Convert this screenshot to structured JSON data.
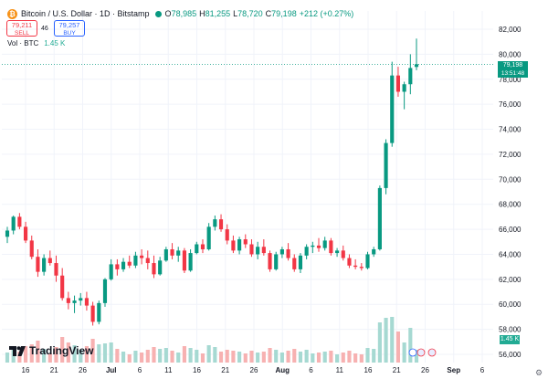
{
  "header": {
    "symbol": "Bitcoin / U.S. Dollar · 1D · Bitstamp",
    "open_label": "O",
    "open": "78,985",
    "high_label": "H",
    "high": "81,255",
    "low_label": "L",
    "low": "78,720",
    "close_label": "C",
    "close": "79,198",
    "change": "+212 (+0.27%)",
    "icon": "bitcoin-icon"
  },
  "sell": {
    "price": "79,211",
    "label": "SELL"
  },
  "buy": {
    "price": "79,257",
    "label": "BUY"
  },
  "spread": "46",
  "volume": {
    "label": "Vol · BTC",
    "value": "1.45 K"
  },
  "last_price_tag": {
    "price": "79,198",
    "countdown": "13:51:48"
  },
  "volume_tag": "1.45 K",
  "logo": "TradingView",
  "colors": {
    "up": "#089981",
    "down": "#f23645",
    "vol_up": "#a6d9d2",
    "vol_down": "#f7b1b1",
    "grid": "#f0f3fa",
    "text": "#131722"
  },
  "chart_data": {
    "type": "candlestick",
    "price_axis": {
      "ticks": [
        56000,
        58000,
        60000,
        62000,
        64000,
        66000,
        68000,
        70000,
        72000,
        74000,
        76000,
        78000,
        80000,
        82000
      ]
    },
    "time_axis": {
      "labels": [
        "16",
        "21",
        "26",
        "Jul",
        "6",
        "11",
        "16",
        "21",
        "26",
        "Aug",
        "6",
        "11",
        "16",
        "21",
        "26",
        "Sep",
        "6"
      ]
    },
    "last_price": 79198,
    "candles": [
      [
        65400,
        66200,
        64900,
        65900,
        11
      ],
      [
        65900,
        67100,
        65600,
        67000,
        14
      ],
      [
        67000,
        67300,
        66000,
        66200,
        12
      ],
      [
        66200,
        66600,
        64900,
        65100,
        18
      ],
      [
        65100,
        65500,
        63600,
        63800,
        20
      ],
      [
        63800,
        64400,
        62200,
        62600,
        24
      ],
      [
        62600,
        64000,
        62300,
        63700,
        15
      ],
      [
        63700,
        64300,
        63100,
        63300,
        10
      ],
      [
        63300,
        63900,
        61800,
        62300,
        17
      ],
      [
        62300,
        62900,
        60300,
        60500,
        28
      ],
      [
        60500,
        61000,
        59600,
        60100,
        22
      ],
      [
        60100,
        60700,
        59300,
        60300,
        19
      ],
      [
        60300,
        60900,
        59900,
        60500,
        14
      ],
      [
        60500,
        61000,
        59500,
        59900,
        18
      ],
      [
        59900,
        60200,
        58300,
        58600,
        26
      ],
      [
        58600,
        60300,
        58400,
        60100,
        20
      ],
      [
        60100,
        62100,
        59800,
        62000,
        21
      ],
      [
        62000,
        63600,
        61900,
        63200,
        22
      ],
      [
        63200,
        63600,
        62300,
        62800,
        15
      ],
      [
        62800,
        63700,
        62600,
        63400,
        12
      ],
      [
        63400,
        63900,
        62900,
        63100,
        9
      ],
      [
        63100,
        64200,
        62900,
        63900,
        13
      ],
      [
        63900,
        64400,
        63200,
        63700,
        11
      ],
      [
        63700,
        64300,
        62800,
        63300,
        14
      ],
      [
        63300,
        63900,
        62100,
        62400,
        17
      ],
      [
        62400,
        63800,
        62300,
        63500,
        15
      ],
      [
        63500,
        64600,
        63400,
        64400,
        16
      ],
      [
        64400,
        64900,
        63600,
        63900,
        13
      ],
      [
        63900,
        64600,
        63400,
        64300,
        11
      ],
      [
        64300,
        64500,
        62500,
        62700,
        18
      ],
      [
        62700,
        64400,
        62600,
        64100,
        16
      ],
      [
        64100,
        65000,
        64000,
        64800,
        14
      ],
      [
        64800,
        65200,
        64100,
        64400,
        10
      ],
      [
        64400,
        66500,
        64300,
        66200,
        19
      ],
      [
        66200,
        67100,
        65900,
        66800,
        17
      ],
      [
        66800,
        67200,
        65800,
        66000,
        12
      ],
      [
        66000,
        66400,
        64800,
        65100,
        14
      ],
      [
        65100,
        65500,
        64100,
        64300,
        13
      ],
      [
        64300,
        65400,
        64000,
        65200,
        12
      ],
      [
        65200,
        65600,
        64500,
        64800,
        10
      ],
      [
        64800,
        65200,
        63800,
        64000,
        13
      ],
      [
        64000,
        65000,
        63600,
        64600,
        11
      ],
      [
        64600,
        65200,
        63900,
        64100,
        12
      ],
      [
        64100,
        64300,
        62600,
        62800,
        16
      ],
      [
        62800,
        64200,
        62700,
        64000,
        14
      ],
      [
        64000,
        64600,
        63700,
        64400,
        11
      ],
      [
        64400,
        64900,
        63500,
        63700,
        13
      ],
      [
        63700,
        64000,
        62600,
        62800,
        15
      ],
      [
        62800,
        64100,
        62500,
        63900,
        12
      ],
      [
        63900,
        64800,
        63600,
        64600,
        14
      ],
      [
        64600,
        65000,
        64100,
        64700,
        10
      ],
      [
        64700,
        65300,
        64200,
        64500,
        11
      ],
      [
        64500,
        65400,
        64300,
        65100,
        12
      ],
      [
        65100,
        65300,
        63900,
        64100,
        13
      ],
      [
        64100,
        64500,
        63800,
        64300,
        9
      ],
      [
        64300,
        64700,
        63500,
        63700,
        11
      ],
      [
        63700,
        64000,
        62900,
        63100,
        13
      ],
      [
        63100,
        63600,
        62800,
        63000,
        10
      ],
      [
        63000,
        63300,
        62700,
        62900,
        9
      ],
      [
        62900,
        64200,
        62800,
        64000,
        16
      ],
      [
        64000,
        64600,
        63800,
        64400,
        15
      ],
      [
        64400,
        69500,
        64300,
        69300,
        44
      ],
      [
        69300,
        73200,
        68800,
        72900,
        49
      ],
      [
        72900,
        79400,
        72600,
        78300,
        50
      ],
      [
        78300,
        79000,
        76600,
        77000,
        34
      ],
      [
        77000,
        77800,
        75600,
        77600,
        22
      ],
      [
        77600,
        80000,
        76800,
        78900,
        38
      ],
      [
        78985,
        81255,
        78720,
        79198,
        14
      ]
    ]
  }
}
